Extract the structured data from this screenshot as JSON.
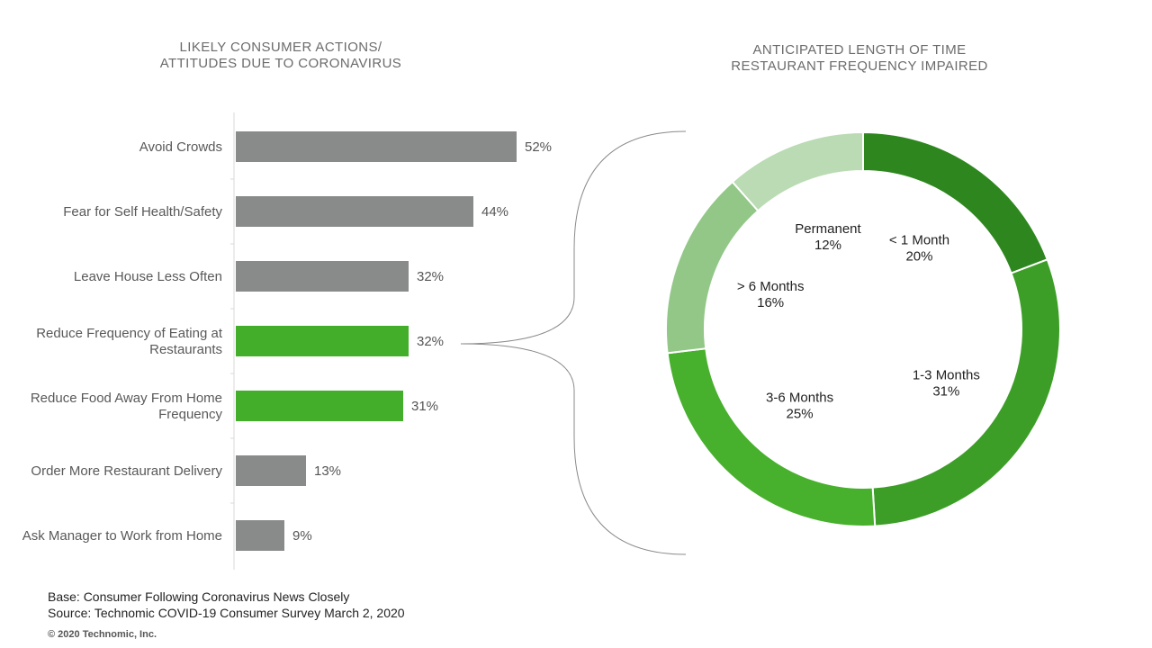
{
  "chart_data": [
    {
      "type": "bar",
      "orientation": "horizontal",
      "title_lines": [
        "LIKELY CONSUMER ACTIONS/",
        "ATTITUDES DUE TO CORONAVIRUS"
      ],
      "categories": [
        [
          "Avoid Crowds"
        ],
        [
          "Fear for Self Health/Safety"
        ],
        [
          "Leave House Less Often"
        ],
        [
          "Reduce Frequency of Eating at",
          "Restaurants"
        ],
        [
          "Reduce Food Away From Home",
          "Frequency"
        ],
        [
          "Order More Restaurant Delivery"
        ],
        [
          "Ask Manager to Work from Home"
        ]
      ],
      "values": [
        52,
        44,
        32,
        32,
        31,
        13,
        9
      ],
      "value_labels": [
        "52%",
        "44%",
        "32%",
        "32%",
        "31%",
        "13%",
        "9%"
      ],
      "highlighted": [
        false,
        false,
        false,
        true,
        true,
        false,
        false
      ],
      "xlim": [
        0,
        100
      ],
      "colors": {
        "default": "#898B8B",
        "highlight": "#43AE2A"
      }
    },
    {
      "type": "pie",
      "variant": "donut",
      "title_lines": [
        "ANTICIPATED LENGTH OF TIME",
        "RESTAURANT FREQUENCY IMPAIRED"
      ],
      "slices": [
        {
          "label": "< 1 Month",
          "value": 20,
          "value_label": "20%",
          "color": "#2E871E"
        },
        {
          "label": "1-3 Months",
          "value": 31,
          "value_label": "31%",
          "color": "#3C9E27"
        },
        {
          "label": "3-6 Months",
          "value": 25,
          "value_label": "25%",
          "color": "#47B02C"
        },
        {
          "label": "> 6 Months",
          "value": 16,
          "value_label": "16%",
          "color": "#92C787"
        },
        {
          "label": "Permanent",
          "value": 12,
          "value_label": "12%",
          "color": "#BADBB3"
        }
      ]
    }
  ],
  "footer": {
    "base": "Base: Consumer Following Coronavirus News Closely",
    "source": "Source: Technomic COVID-19 Consumer Survey March 2, 2020",
    "copyright": "© 2020 Technomic, Inc."
  }
}
